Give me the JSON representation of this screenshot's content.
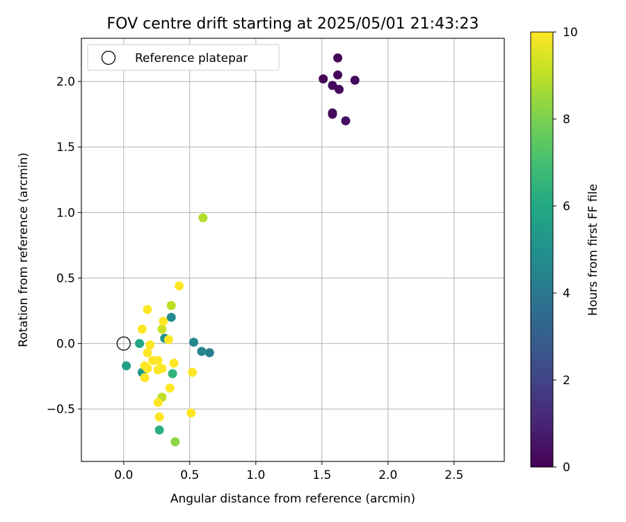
{
  "chart_data": {
    "type": "scatter",
    "title": "FOV centre drift starting at 2025/05/01 21:43:23",
    "xlabel": "Angular distance from reference (arcmin)",
    "ylabel": "Rotation from reference (arcmin)",
    "xlim": [
      -0.32,
      2.88
    ],
    "ylim": [
      -0.9,
      2.33
    ],
    "xticks": [
      0.0,
      0.5,
      1.0,
      1.5,
      2.0,
      2.5
    ],
    "xtick_labels": [
      "0.0",
      "0.5",
      "1.0",
      "1.5",
      "2.0",
      "2.5"
    ],
    "yticks": [
      -0.5,
      0.0,
      0.5,
      1.0,
      1.5,
      2.0
    ],
    "ytick_labels": [
      "−0.5",
      "0.0",
      "0.5",
      "1.0",
      "1.5",
      "2.0"
    ],
    "grid": true,
    "legend": {
      "position": "top-left",
      "entries": [
        "Reference platepar"
      ]
    },
    "reference": {
      "x": 0.0,
      "y": 0.0,
      "label": "Reference platepar"
    },
    "colorbar": {
      "label": "Hours from first FF file",
      "colormap": "viridis",
      "range": [
        0,
        10
      ],
      "ticks": [
        0,
        2,
        4,
        6,
        8,
        10
      ],
      "tick_labels": [
        "0",
        "2",
        "4",
        "6",
        "8",
        "10"
      ]
    },
    "points": [
      {
        "x": 1.62,
        "y": 2.18,
        "c": 0.1
      },
      {
        "x": 1.51,
        "y": 2.02,
        "c": 0.1
      },
      {
        "x": 1.62,
        "y": 2.05,
        "c": 0.2
      },
      {
        "x": 1.58,
        "y": 1.97,
        "c": 0.2
      },
      {
        "x": 1.63,
        "y": 1.94,
        "c": 0.2
      },
      {
        "x": 1.75,
        "y": 2.01,
        "c": 0.3
      },
      {
        "x": 1.58,
        "y": 1.76,
        "c": 0.3
      },
      {
        "x": 1.58,
        "y": 1.75,
        "c": 0.3
      },
      {
        "x": 1.68,
        "y": 1.7,
        "c": 0.4
      },
      {
        "x": 0.65,
        "y": -0.07,
        "c": 4.3
      },
      {
        "x": 0.59,
        "y": -0.06,
        "c": 4.5
      },
      {
        "x": 0.53,
        "y": 0.01,
        "c": 4.6
      },
      {
        "x": 0.36,
        "y": 0.2,
        "c": 4.8
      },
      {
        "x": 0.31,
        "y": 0.04,
        "c": 5.1
      },
      {
        "x": 0.14,
        "y": -0.22,
        "c": 5.3
      },
      {
        "x": 0.02,
        "y": -0.17,
        "c": 5.5
      },
      {
        "x": 0.12,
        "y": 0.0,
        "c": 6.0
      },
      {
        "x": 0.27,
        "y": -0.66,
        "c": 6.3
      },
      {
        "x": 0.37,
        "y": -0.23,
        "c": 6.5
      },
      {
        "x": 0.39,
        "y": -0.75,
        "c": 8.3
      },
      {
        "x": 0.6,
        "y": 0.96,
        "c": 8.8
      },
      {
        "x": 0.36,
        "y": 0.29,
        "c": 9.0
      },
      {
        "x": 0.29,
        "y": -0.41,
        "c": 9.0
      },
      {
        "x": 0.29,
        "y": 0.11,
        "c": 9.2
      },
      {
        "x": 0.42,
        "y": 0.44,
        "c": 10.0
      },
      {
        "x": 0.18,
        "y": 0.26,
        "c": 10.0
      },
      {
        "x": 0.3,
        "y": 0.17,
        "c": 10.0
      },
      {
        "x": 0.14,
        "y": 0.11,
        "c": 10.0
      },
      {
        "x": 0.34,
        "y": 0.03,
        "c": 10.0
      },
      {
        "x": 0.2,
        "y": -0.01,
        "c": 10.0
      },
      {
        "x": 0.18,
        "y": -0.07,
        "c": 10.0
      },
      {
        "x": 0.22,
        "y": -0.13,
        "c": 10.0
      },
      {
        "x": 0.26,
        "y": -0.13,
        "c": 10.0
      },
      {
        "x": 0.16,
        "y": -0.17,
        "c": 10.0
      },
      {
        "x": 0.18,
        "y": -0.19,
        "c": 10.0
      },
      {
        "x": 0.26,
        "y": -0.2,
        "c": 10.0
      },
      {
        "x": 0.29,
        "y": -0.19,
        "c": 10.0
      },
      {
        "x": 0.16,
        "y": -0.26,
        "c": 10.0
      },
      {
        "x": 0.38,
        "y": -0.15,
        "c": 10.0
      },
      {
        "x": 0.52,
        "y": -0.22,
        "c": 10.0
      },
      {
        "x": 0.35,
        "y": -0.34,
        "c": 10.0
      },
      {
        "x": 0.26,
        "y": -0.45,
        "c": 10.0
      },
      {
        "x": 0.27,
        "y": -0.56,
        "c": 10.0
      },
      {
        "x": 0.51,
        "y": -0.53,
        "c": 10.0
      }
    ]
  }
}
